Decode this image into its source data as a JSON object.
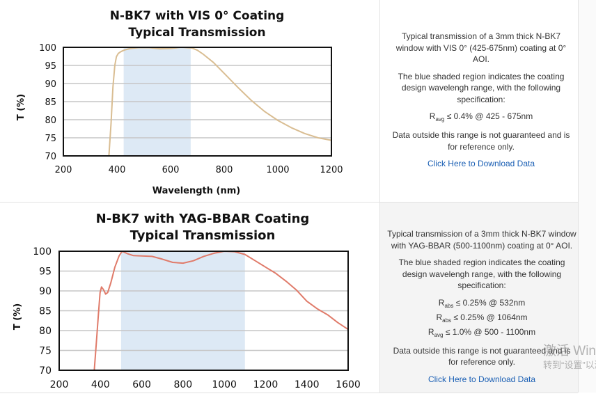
{
  "colors": {
    "band": "#dde9f5",
    "curve1": "#d9bd92",
    "curve2": "#e07b6a",
    "grid": "#c6c6c6",
    "frame": "#111111",
    "link": "#1a5fb4"
  },
  "chart_data": [
    {
      "type": "line",
      "title": "N-BK7 with VIS 0° Coating",
      "subtitle": "Typical Transmission",
      "xlabel": "Wavelength (nm)",
      "ylabel": "T (%)",
      "xlim": [
        200,
        1200
      ],
      "ylim": [
        70,
        100
      ],
      "xticks": [
        200,
        400,
        600,
        800,
        1000,
        1200
      ],
      "yticks": [
        70,
        75,
        80,
        85,
        90,
        95,
        100
      ],
      "grid": true,
      "shaded_region": [
        425,
        675
      ],
      "series": [
        {
          "name": "N-BK7 with VIS 0° Coating",
          "color": "#d9bd92",
          "x": [
            370,
            378,
            385,
            392,
            398,
            405,
            412,
            420,
            430,
            450,
            480,
            520,
            560,
            600,
            640,
            680,
            700,
            720,
            760,
            800,
            850,
            900,
            950,
            1000,
            1050,
            1100,
            1150,
            1200
          ],
          "y": [
            70,
            79,
            89,
            95,
            97.4,
            98.3,
            98.7,
            99.0,
            99.3,
            99.7,
            99.9,
            99.9,
            99.6,
            99.7,
            100,
            99.8,
            99.2,
            98.2,
            95.8,
            92.8,
            89.0,
            85.4,
            82.3,
            79.8,
            77.8,
            76.2,
            75.0,
            74.3
          ]
        }
      ]
    },
    {
      "type": "line",
      "title": "N-BK7 with YAG-BBAR Coating",
      "subtitle": "Typical Transmission",
      "xlabel": "",
      "ylabel": "T (%)",
      "xlim": [
        200,
        1600
      ],
      "ylim": [
        70,
        100
      ],
      "xticks": [
        200,
        400,
        600,
        800,
        1000,
        1200,
        1400,
        1600
      ],
      "yticks": [
        70,
        75,
        80,
        85,
        90,
        95,
        100
      ],
      "grid": true,
      "shaded_region": [
        500,
        1100
      ],
      "series": [
        {
          "name": "N-BK7 with YAG-BBAR Coating",
          "color": "#e07b6a",
          "x": [
            370,
            380,
            390,
            398,
            405,
            415,
            425,
            435,
            450,
            470,
            490,
            505,
            530,
            560,
            600,
            650,
            700,
            750,
            800,
            850,
            900,
            950,
            1000,
            1050,
            1100,
            1150,
            1200,
            1250,
            1300,
            1350,
            1400,
            1450,
            1500,
            1550,
            1600
          ],
          "y": [
            70,
            77,
            84,
            89.5,
            91,
            90.3,
            89.2,
            89.6,
            92,
            96,
            98.8,
            100,
            99.4,
            98.9,
            98.8,
            98.7,
            98,
            97.2,
            97.0,
            97.6,
            98.7,
            99.5,
            100,
            99.9,
            99.2,
            97.6,
            96.0,
            94.4,
            92.4,
            90.2,
            87.4,
            85.5,
            84.0,
            82.0,
            80.3
          ]
        }
      ]
    }
  ],
  "panels": [
    {
      "desc1": "Typical transmission of a 3mm thick N-BK7 window with VIS 0° (425-675nm) coating at 0° AOI.",
      "desc2": "The blue shaded region indicates the coating design wavelengh range, with the following specification:",
      "specs": [
        {
          "symbol": "R",
          "sub": "avg",
          "text": "≤ 0.4% @ 425 - 675nm"
        }
      ],
      "desc3": "Data outside this range is not guaranteed and is for reference only.",
      "link": "Click Here to Download Data"
    },
    {
      "desc1": "Typical transmission of a 3mm thick N-BK7 window with YAG-BBAR (500-1100nm) coating at 0° AOI.",
      "desc2": "The blue shaded region indicates the coating design wavelengh range, with the following specification:",
      "specs": [
        {
          "symbol": "R",
          "sub": "abs",
          "text": "≤ 0.25% @ 532nm"
        },
        {
          "symbol": "R",
          "sub": "abs",
          "text": "≤ 0.25% @ 1064nm"
        },
        {
          "symbol": "R",
          "sub": "avg",
          "text": "≤ 1.0% @ 500 - 1100nm"
        }
      ],
      "desc3": "Data outside this range is not guaranteed and is for reference only.",
      "link": "Click Here to Download Data"
    }
  ],
  "watermark": {
    "line1": "激活 Windows",
    "line2": "转到“设置”以激活 Windows。"
  }
}
